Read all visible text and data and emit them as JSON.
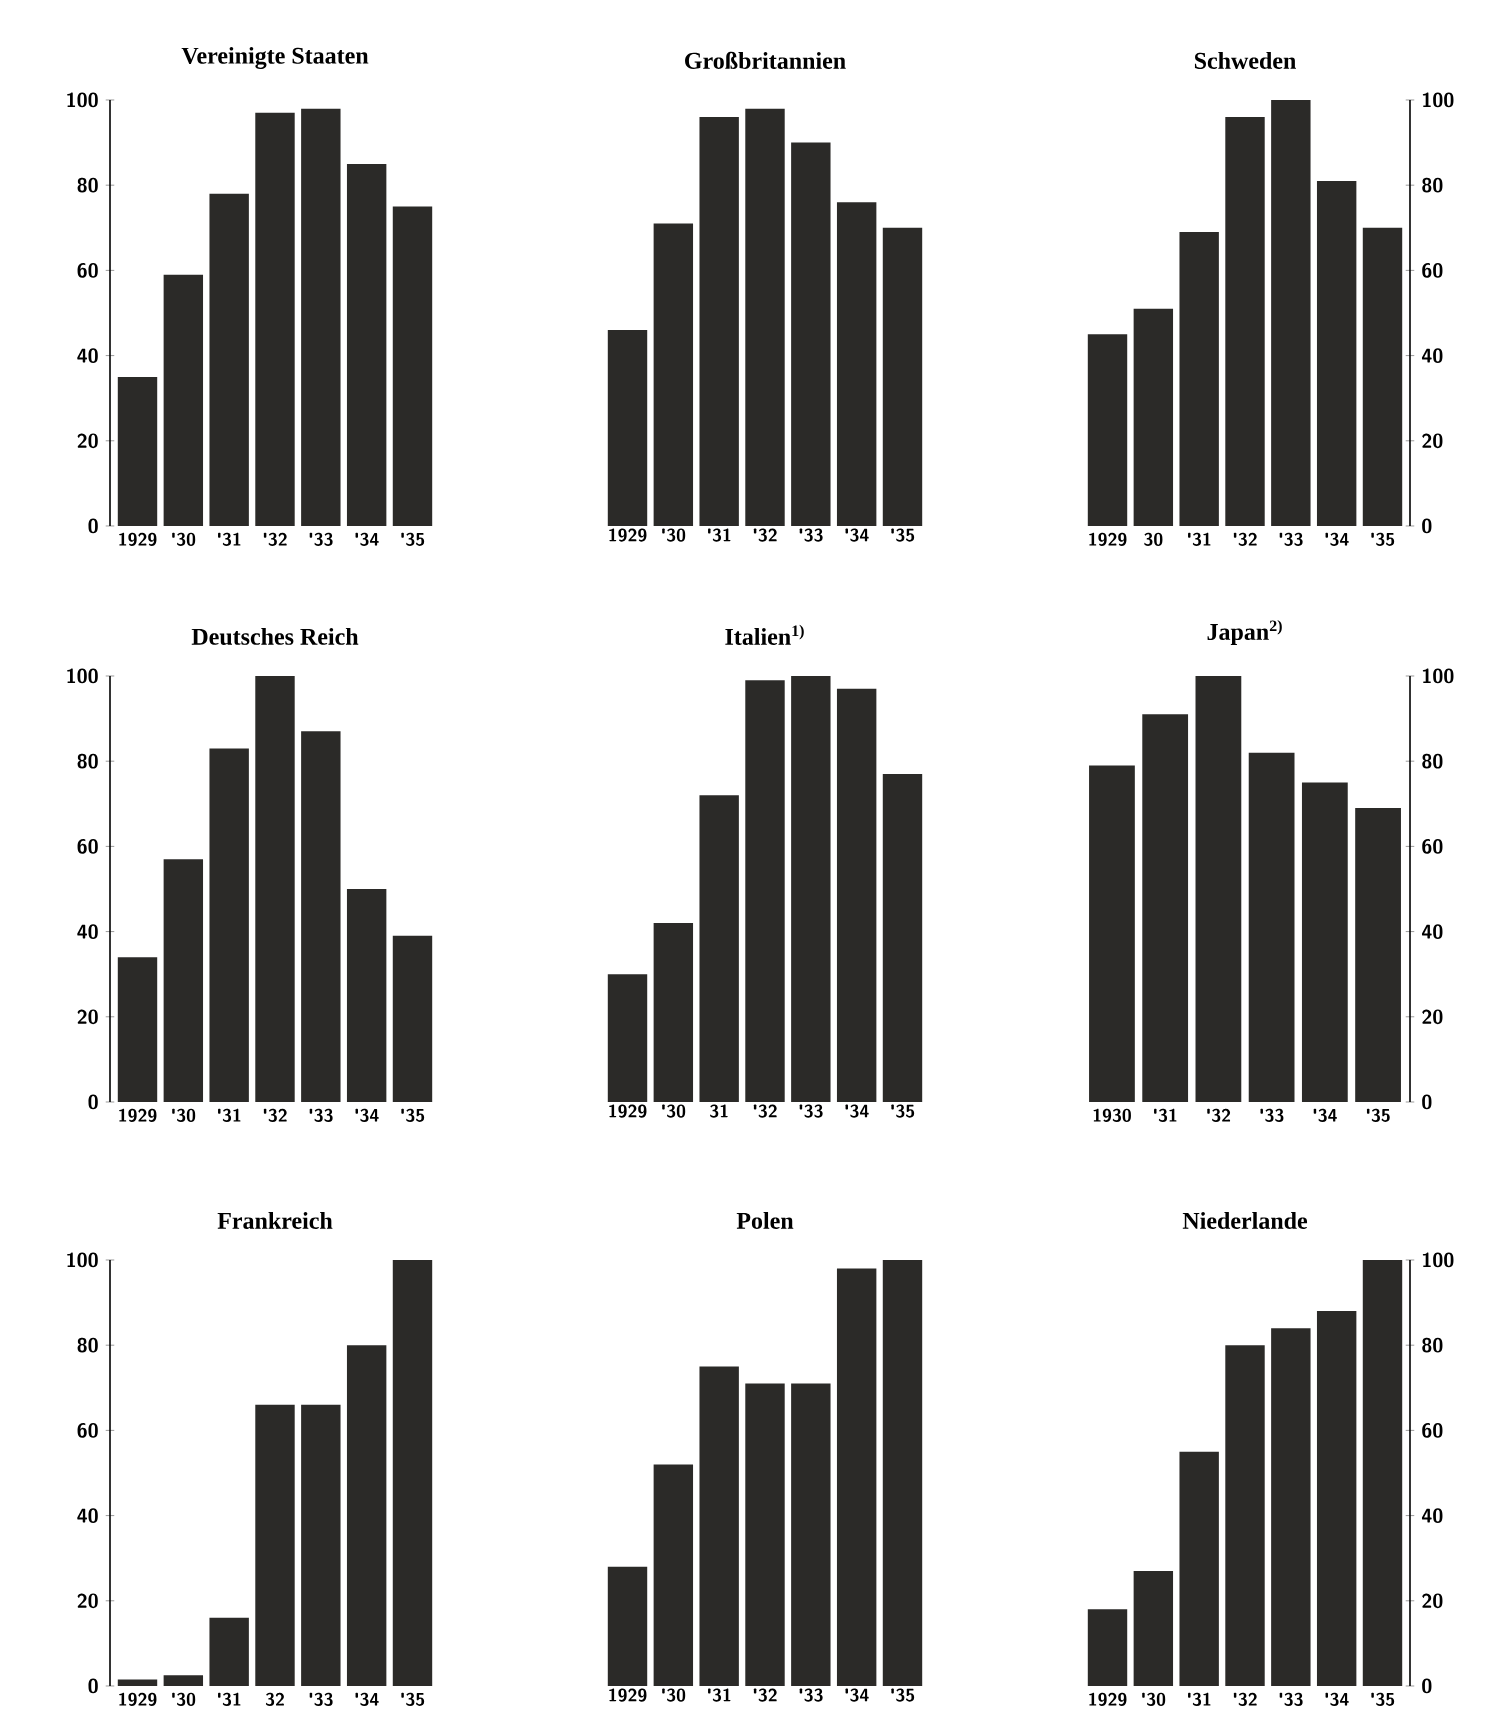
{
  "chart_data": [
    {
      "type": "bar",
      "title": "Vereinigte Staaten",
      "categories": [
        "1929",
        "'30",
        "'31",
        "'32",
        "'33",
        "'34",
        "'35"
      ],
      "values": [
        35,
        59,
        78,
        97,
        98,
        85,
        75
      ],
      "color": "#2b2a28",
      "ylim": [
        0,
        100
      ],
      "yticks": [
        0,
        20,
        40,
        60,
        80,
        100
      ]
    },
    {
      "type": "bar",
      "title": "Großbritannien",
      "categories": [
        "1929",
        "'30",
        "'31",
        "'32",
        "'33",
        "'34",
        "'35"
      ],
      "values": [
        46,
        71,
        96,
        98,
        90,
        76,
        70
      ],
      "color": "#2b2a28",
      "ylim": [
        0,
        100
      ],
      "tick_labels": "x"
    },
    {
      "type": "bar",
      "title": "Schweden",
      "categories": [
        "1929",
        "30",
        "'31",
        "'32",
        "'33",
        "'34",
        "'35"
      ],
      "values": [
        45,
        51,
        69,
        96,
        100,
        81,
        70
      ],
      "color": "#2b2a28",
      "ylim": [
        0,
        100
      ],
      "yticks": [
        0,
        20,
        40,
        60,
        80,
        100
      ]
    },
    {
      "type": "bar",
      "title": "Deutsches Reich",
      "categories": [
        "1929",
        "'30",
        "'31",
        "'32",
        "'33",
        "'34",
        "'35"
      ],
      "values": [
        34,
        57,
        83,
        100,
        87,
        50,
        39
      ],
      "color": "#2b2a28",
      "ylim": [
        0,
        100
      ],
      "yticks": [
        0,
        20,
        40,
        60,
        80,
        100
      ]
    },
    {
      "type": "bar",
      "title": "Italien$^{1)}$",
      "categories": [
        "1929",
        "'30",
        "31",
        "'32",
        "'33",
        "'34",
        "'35"
      ],
      "values": [
        30,
        42,
        72,
        99,
        100,
        97,
        77
      ],
      "color": "#2b2a28",
      "ylim": [
        0,
        100
      ],
      "tick_labels": "x"
    },
    {
      "type": "bar",
      "title": "Japan$^{2)}$",
      "categories": [
        "1930",
        "'31",
        "'32",
        "'33",
        "'34",
        "'35"
      ],
      "values": [
        79,
        91,
        100,
        82,
        75,
        69
      ],
      "color": "#2b2a28",
      "ylim": [
        0,
        100
      ],
      "yticks": [
        0,
        20,
        40,
        60,
        80,
        100
      ]
    },
    {
      "type": "bar",
      "title": "Frankreich",
      "categories": [
        "1929",
        "'30",
        "'31",
        "32",
        "'33",
        "'34",
        "'35"
      ],
      "values": [
        1.5,
        2.5,
        16,
        66,
        66,
        80,
        100
      ],
      "color": "#2b2a28",
      "ylim": [
        0,
        100
      ],
      "yticks": [
        0,
        20,
        40,
        60,
        80,
        100
      ]
    },
    {
      "type": "bar",
      "title": "Polen",
      "categories": [
        "1929",
        "'30",
        "'31",
        "'32",
        "'33",
        "'34",
        "'35"
      ],
      "values": [
        28,
        52,
        75,
        71,
        71,
        98,
        100
      ],
      "color": "#2b2a28",
      "ylim": [
        0,
        100
      ],
      "tick_labels": "x"
    },
    {
      "type": "bar",
      "title": "Niederlande",
      "categories": [
        "1929",
        "'30",
        "'31",
        "'32",
        "'33",
        "'34",
        "'35"
      ],
      "values": [
        18,
        27,
        55,
        80,
        84,
        88,
        100
      ],
      "color": "#2b2a28",
      "ylim": [
        0,
        100
      ],
      "yticks": [
        0,
        20,
        40,
        60,
        80,
        100
      ]
    }
  ]
}
